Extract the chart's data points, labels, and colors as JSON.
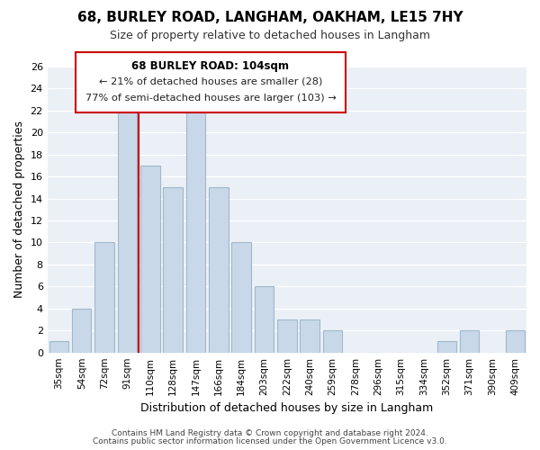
{
  "title": "68, BURLEY ROAD, LANGHAM, OAKHAM, LE15 7HY",
  "subtitle": "Size of property relative to detached houses in Langham",
  "xlabel": "Distribution of detached houses by size in Langham",
  "ylabel": "Number of detached properties",
  "bin_labels": [
    "35sqm",
    "54sqm",
    "72sqm",
    "91sqm",
    "110sqm",
    "128sqm",
    "147sqm",
    "166sqm",
    "184sqm",
    "203sqm",
    "222sqm",
    "240sqm",
    "259sqm",
    "278sqm",
    "296sqm",
    "315sqm",
    "334sqm",
    "352sqm",
    "371sqm",
    "390sqm",
    "409sqm"
  ],
  "bar_heights": [
    1,
    4,
    10,
    22,
    17,
    15,
    22,
    15,
    10,
    6,
    3,
    3,
    2,
    0,
    0,
    0,
    0,
    1,
    2,
    0,
    2
  ],
  "bar_color": "#c8d8e8",
  "bar_edge_color": "#a0b8cc",
  "vline_x_index": 4,
  "vline_color": "#cc0000",
  "ylim": [
    0,
    26
  ],
  "yticks": [
    0,
    2,
    4,
    6,
    8,
    10,
    12,
    14,
    16,
    18,
    20,
    22,
    24,
    26
  ],
  "annotation_title": "68 BURLEY ROAD: 104sqm",
  "annotation_line1": "← 21% of detached houses are smaller (28)",
  "annotation_line2": "77% of semi-detached houses are larger (103) →",
  "footer1": "Contains HM Land Registry data © Crown copyright and database right 2024.",
  "footer2": "Contains public sector information licensed under the Open Government Licence v3.0.",
  "background_color": "#ffffff",
  "plot_bg_color": "#eaf0f6"
}
